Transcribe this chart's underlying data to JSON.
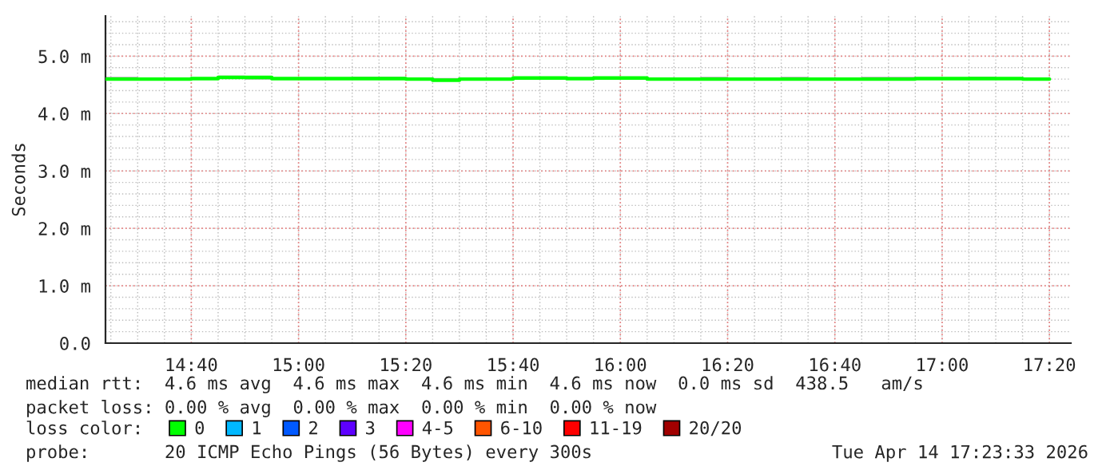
{
  "chart_data": {
    "type": "step",
    "ylabel": "Seconds",
    "legend_title": "loss color:",
    "legend": "bottom",
    "grid": true,
    "x": [
      "2026-04-14T14:24",
      "2026-04-14T14:30",
      "2026-04-14T14:35",
      "2026-04-14T14:40",
      "2026-04-14T14:45",
      "2026-04-14T14:50",
      "2026-04-14T14:55",
      "2026-04-14T15:00",
      "2026-04-14T15:05",
      "2026-04-14T15:10",
      "2026-04-14T15:15",
      "2026-04-14T15:20",
      "2026-04-14T15:25",
      "2026-04-14T15:30",
      "2026-04-14T15:35",
      "2026-04-14T15:40",
      "2026-04-14T15:45",
      "2026-04-14T15:50",
      "2026-04-14T15:55",
      "2026-04-14T16:00",
      "2026-04-14T16:05",
      "2026-04-14T16:10",
      "2026-04-14T16:15",
      "2026-04-14T16:20",
      "2026-04-14T16:25",
      "2026-04-14T16:30",
      "2026-04-14T16:35",
      "2026-04-14T16:40",
      "2026-04-14T16:45",
      "2026-04-14T16:50",
      "2026-04-14T16:55",
      "2026-04-14T17:00",
      "2026-04-14T17:05",
      "2026-04-14T17:10",
      "2026-04-14T17:15",
      "2026-04-14T17:20"
    ],
    "series": [
      {
        "name": "0",
        "color": "#00ff00",
        "values": [
          4.6,
          4.6,
          4.6,
          4.61,
          4.63,
          4.63,
          4.61,
          4.61,
          4.61,
          4.61,
          4.61,
          4.6,
          4.58,
          4.6,
          4.6,
          4.62,
          4.62,
          4.61,
          4.62,
          4.62,
          4.6,
          4.6,
          4.6,
          4.6,
          4.6,
          4.6,
          4.6,
          4.6,
          4.6,
          4.6,
          4.61,
          4.61,
          4.61,
          4.61,
          4.6,
          4.6
        ],
        "lower": [
          4.59,
          4.59,
          4.59,
          4.6,
          4.6,
          4.59,
          4.6,
          4.6,
          4.6,
          4.6,
          4.6,
          4.59,
          4.58,
          4.59,
          4.59,
          4.6,
          4.6,
          4.59,
          4.6,
          4.6,
          4.59,
          4.59,
          4.59,
          4.59,
          4.59,
          4.59,
          4.58,
          4.59,
          4.59,
          4.59,
          4.6,
          4.6,
          4.6,
          4.6,
          4.59,
          4.59
        ],
        "upper": [
          4.64,
          4.63,
          4.63,
          4.63,
          4.66,
          4.65,
          4.63,
          4.63,
          4.63,
          4.64,
          4.64,
          4.63,
          4.62,
          4.63,
          4.62,
          4.63,
          4.64,
          4.63,
          4.64,
          4.64,
          4.62,
          4.63,
          4.64,
          4.63,
          4.63,
          4.64,
          4.63,
          4.62,
          4.64,
          4.64,
          4.63,
          4.63,
          4.64,
          4.63,
          4.62,
          4.62
        ]
      },
      {
        "name": "1",
        "color": "#00b8ff",
        "values": [
          null,
          null,
          null,
          null,
          null,
          null,
          null,
          null,
          null,
          null,
          null,
          null,
          null,
          null,
          null,
          null,
          null,
          null,
          null,
          null,
          null,
          null,
          null,
          null,
          null,
          null,
          null,
          null,
          null,
          null,
          null,
          null,
          null,
          null,
          null,
          null
        ]
      },
      {
        "name": "2",
        "color": "#0059ff",
        "values": [
          null,
          null,
          null,
          null,
          null,
          null,
          null,
          null,
          null,
          null,
          null,
          null,
          null,
          null,
          null,
          null,
          null,
          null,
          null,
          null,
          null,
          null,
          null,
          null,
          null,
          null,
          null,
          null,
          null,
          null,
          null,
          null,
          null,
          null,
          null,
          null
        ]
      },
      {
        "name": "3",
        "color": "#5e00ff",
        "values": [
          null,
          null,
          null,
          null,
          null,
          null,
          null,
          null,
          null,
          null,
          null,
          null,
          null,
          null,
          null,
          null,
          null,
          null,
          null,
          null,
          null,
          null,
          null,
          null,
          null,
          null,
          null,
          null,
          null,
          null,
          null,
          null,
          null,
          null,
          null,
          null
        ]
      },
      {
        "name": "4-5",
        "color": "#ff00ff",
        "values": [
          null,
          null,
          null,
          null,
          null,
          null,
          null,
          null,
          null,
          null,
          null,
          null,
          null,
          null,
          null,
          null,
          null,
          null,
          null,
          null,
          null,
          null,
          null,
          null,
          null,
          null,
          null,
          null,
          null,
          null,
          null,
          null,
          null,
          null,
          null,
          null
        ]
      },
      {
        "name": "6-10",
        "color": "#ff5500",
        "values": [
          null,
          null,
          null,
          null,
          null,
          null,
          null,
          null,
          null,
          null,
          null,
          null,
          null,
          null,
          null,
          null,
          null,
          null,
          null,
          null,
          null,
          null,
          null,
          null,
          null,
          null,
          null,
          null,
          null,
          null,
          null,
          null,
          null,
          null,
          null,
          null
        ]
      },
      {
        "name": "11-19",
        "color": "#ff0000",
        "values": [
          null,
          null,
          null,
          null,
          null,
          null,
          null,
          null,
          null,
          null,
          null,
          null,
          null,
          null,
          null,
          null,
          null,
          null,
          null,
          null,
          null,
          null,
          null,
          null,
          null,
          null,
          null,
          null,
          null,
          null,
          null,
          null,
          null,
          null,
          null,
          null
        ]
      },
      {
        "name": "20/20",
        "color": "#a10000",
        "values": [
          null,
          null,
          null,
          null,
          null,
          null,
          null,
          null,
          null,
          null,
          null,
          null,
          null,
          null,
          null,
          null,
          null,
          null,
          null,
          null,
          null,
          null,
          null,
          null,
          null,
          null,
          null,
          null,
          null,
          null,
          null,
          null,
          null,
          null,
          null,
          null
        ]
      }
    ],
    "ylim": [
      0,
      5.7
    ],
    "yticks": [
      {
        "value": 0,
        "label": "0.0"
      },
      {
        "value": 1,
        "label": "1.0 m"
      },
      {
        "value": 2,
        "label": "2.0 m"
      },
      {
        "value": 3,
        "label": "3.0 m"
      },
      {
        "value": 4,
        "label": "4.0 m"
      },
      {
        "value": 5,
        "label": "5.0 m"
      }
    ],
    "xlim": [
      "2026-04-14T14:24",
      "2026-04-14T17:24"
    ],
    "xticks": [
      {
        "value": "2026-04-14T14:40",
        "label": "14:40"
      },
      {
        "value": "2026-04-14T15:00",
        "label": "15:00"
      },
      {
        "value": "2026-04-14T15:20",
        "label": "15:20"
      },
      {
        "value": "2026-04-14T15:40",
        "label": "15:40"
      },
      {
        "value": "2026-04-14T16:00",
        "label": "16:00"
      },
      {
        "value": "2026-04-14T16:20",
        "label": "16:20"
      },
      {
        "value": "2026-04-14T16:40",
        "label": "16:40"
      },
      {
        "value": "2026-04-14T17:00",
        "label": "17:00"
      },
      {
        "value": "2026-04-14T17:20",
        "label": "17:20"
      }
    ],
    "annotations": [
      "median rtt:  4.6 ms avg  4.6 ms max  4.6 ms min  4.6 ms now  0.0 ms sd  438.5   am/s",
      "packet loss: 0.00 % avg  0.00 % max  0.00 % min  0.00 % now",
      "probe:       20 ICMP Echo Pings (56 Bytes) every 300s",
      "Tue Apr 14 17:23:33 2026"
    ]
  }
}
